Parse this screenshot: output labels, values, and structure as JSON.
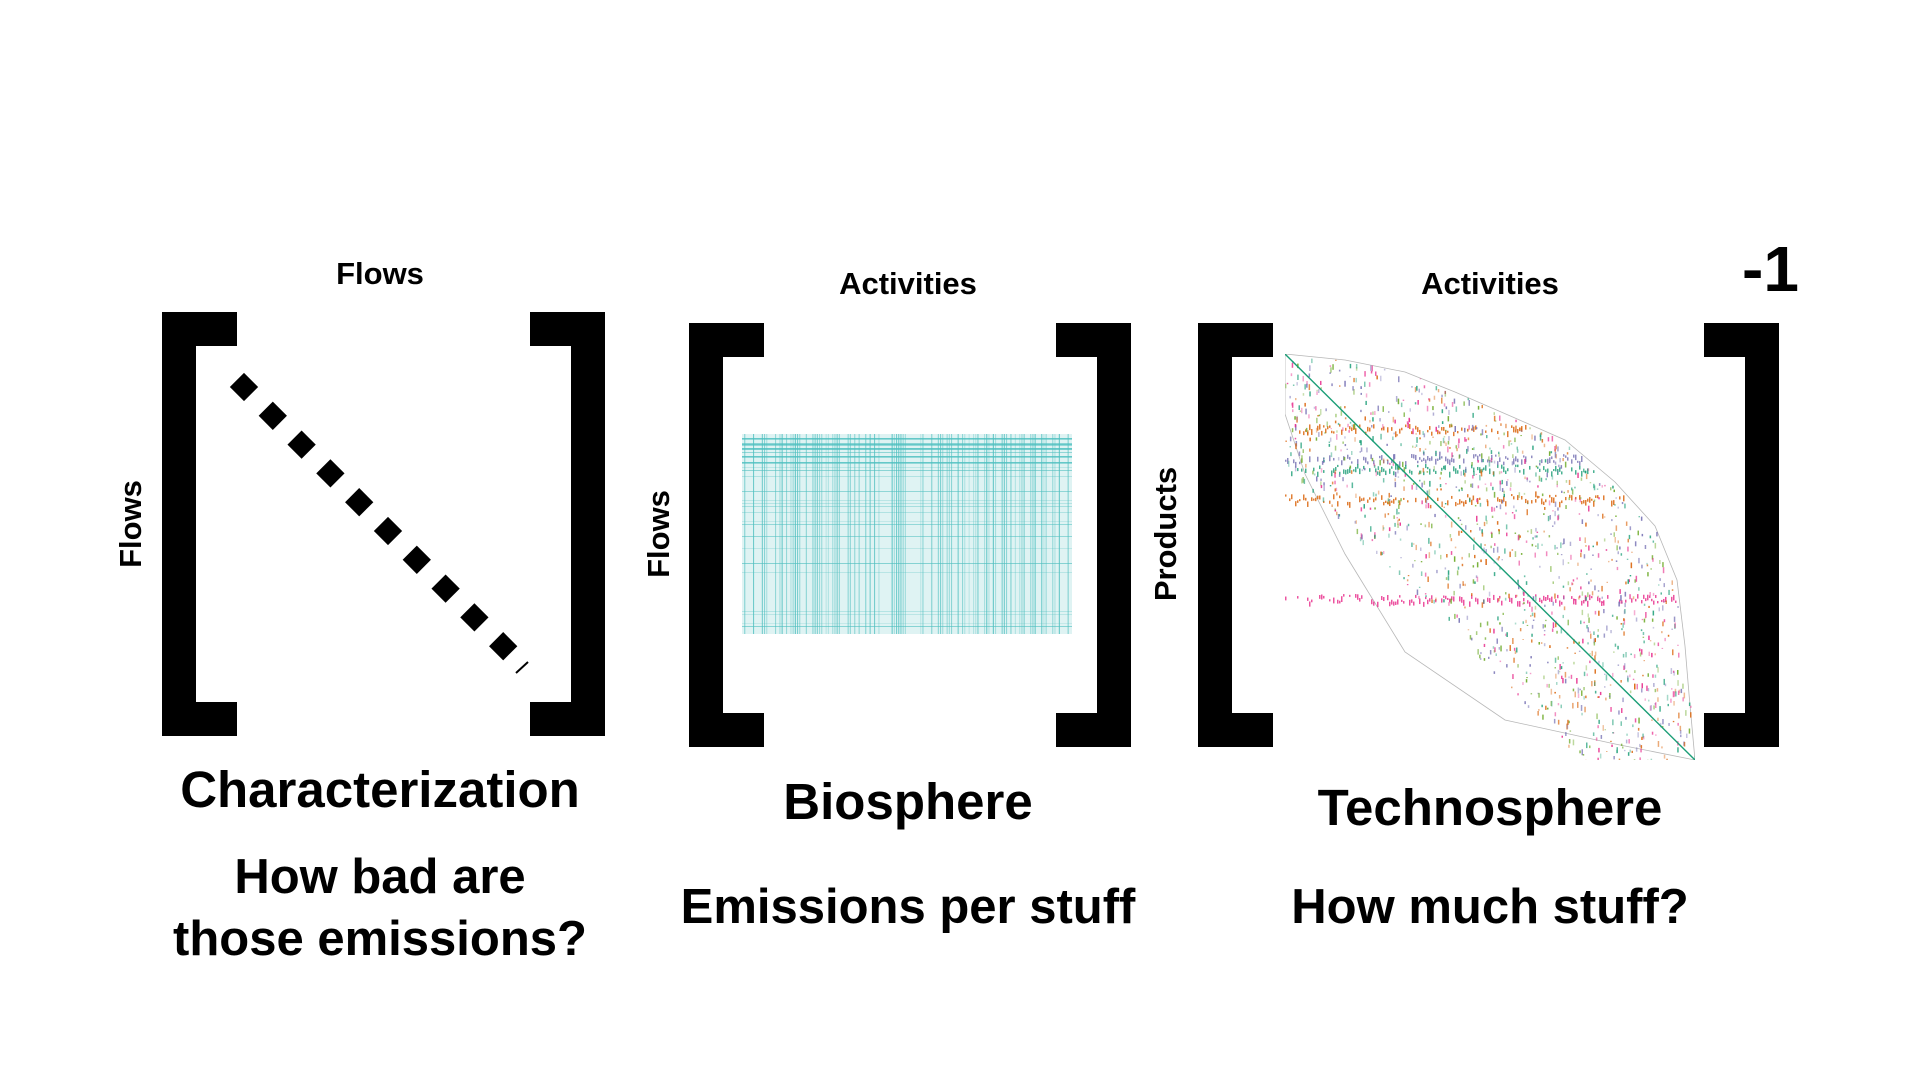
{
  "panels": {
    "characterization": {
      "col_label": "Flows",
      "row_label": "Flows",
      "title": "Characterization",
      "question_line1": "How bad are",
      "question_line2": "those emissions?",
      "diagonal_color": "#000000"
    },
    "biosphere": {
      "col_label": "Activities",
      "row_label": "Flows",
      "title": "Biosphere",
      "question": "Emissions per stuff",
      "matrix_color": "#4fbfbf"
    },
    "technosphere": {
      "col_label": "Activities",
      "row_label": "Products",
      "title": "Technosphere",
      "question": "How much stuff?",
      "superscript": "-1",
      "palette": [
        "#1b9e77",
        "#d95f02",
        "#7570b3",
        "#e7298a",
        "#66a61e"
      ]
    }
  }
}
